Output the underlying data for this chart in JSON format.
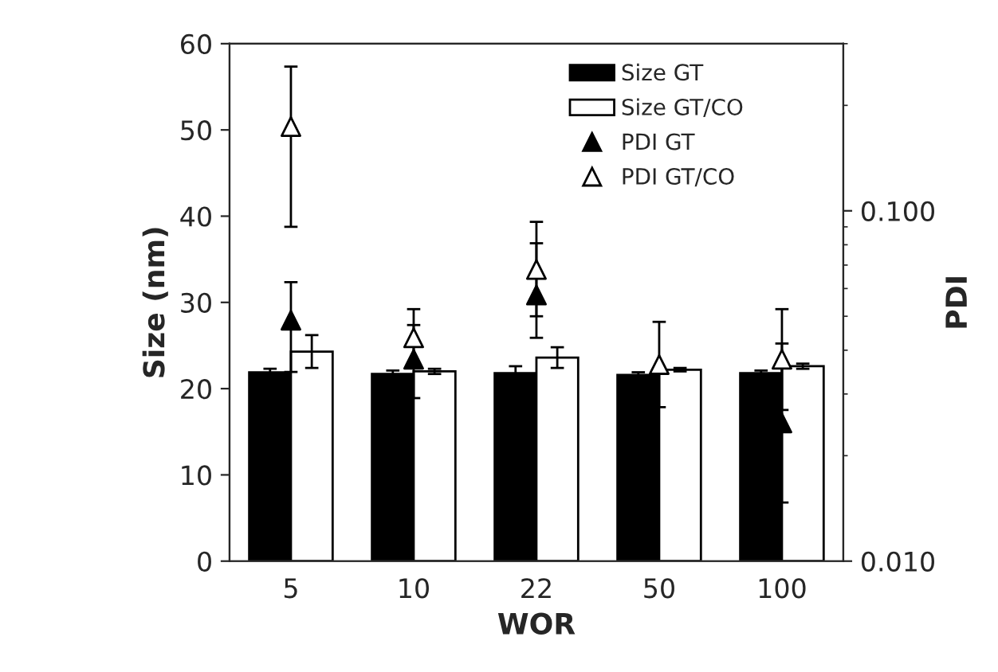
{
  "chart_data": {
    "type": "bar",
    "xlabel": "WOR",
    "ylabel": "Size (nm)",
    "y2label": "PDI",
    "categories": [
      "5",
      "10",
      "22",
      "50",
      "100"
    ],
    "series": [
      {
        "name": "Size GT",
        "color": "#000000",
        "values": [
          21.9,
          21.7,
          21.8,
          21.6,
          21.8
        ],
        "errors": [
          0.4,
          0.4,
          0.8,
          0.3,
          0.3
        ]
      },
      {
        "name": "Size GT/CO",
        "color": "#ffffff",
        "values": [
          24.3,
          22.0,
          23.6,
          22.2,
          22.6
        ],
        "errors": [
          1.9,
          0.3,
          1.2,
          0.2,
          0.3
        ]
      },
      {
        "name": "PDI GT",
        "type": "scatter",
        "axis": "y2",
        "marker": "triangle",
        "color": "#000000",
        "values": [
          0.0487,
          0.0377,
          0.0575,
          null,
          0.0248
        ],
        "errors": [
          [
            0.0347,
            0.0626
          ],
          [
            0.0292,
            0.0472
          ],
          [
            0.0434,
            0.0808
          ],
          null,
          [
            0.0147,
            0.0418
          ]
        ]
      },
      {
        "name": "PDI GT/CO",
        "type": "scatter",
        "axis": "y2",
        "marker": "triangle",
        "color": "#ffffff",
        "values": [
          0.174,
          0.0434,
          0.068,
          0.0364,
          0.0377
        ],
        "errors": [
          [
            0.09,
            0.258
          ],
          [
            0.036,
            0.0524
          ],
          [
            0.05,
            0.093
          ],
          [
            0.0275,
            0.0482
          ],
          [
            0.027,
            0.0524
          ]
        ]
      }
    ],
    "ylim": [
      0,
      60
    ],
    "yticks": [
      0,
      10,
      20,
      30,
      40,
      50,
      60
    ],
    "log": "y2",
    "y2lim": [
      0.01,
      0.3
    ],
    "y2ticks": [
      {
        "value": 0.01,
        "label": "0.010"
      },
      {
        "value": 0.1,
        "label": "0.100"
      }
    ],
    "legend": "top right",
    "grid": false
  }
}
